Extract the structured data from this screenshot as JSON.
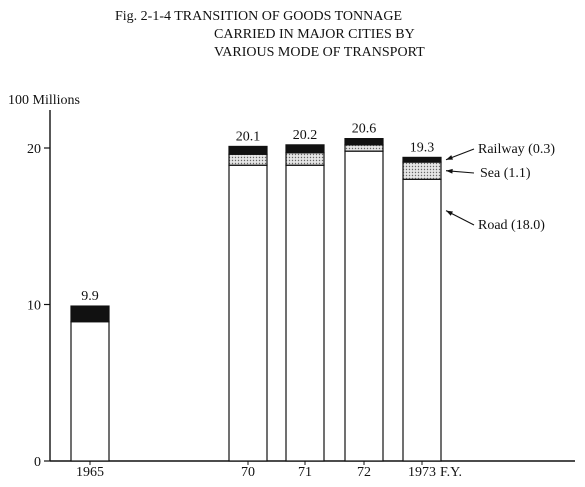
{
  "chart_data": {
    "type": "bar",
    "stacked": true,
    "title_lines": [
      "Fig. 2-1-4   TRANSITION OF GOODS TONNAGE",
      "CARRIED IN MAJOR CITIES BY",
      "VARIOUS MODE OF TRANSPORT"
    ],
    "y_unit": "100 Millions",
    "x_axis_suffix": "F.Y.",
    "ylim": [
      0,
      20
    ],
    "y_ticks": [
      0,
      10,
      20
    ],
    "grid": false,
    "categories": [
      "1965",
      "70",
      "71",
      "72",
      "1973"
    ],
    "totals": [
      "9.9",
      "20.1",
      "20.2",
      "20.6",
      "19.3"
    ],
    "series": [
      {
        "name": "Road",
        "values": [
          8.9,
          18.9,
          18.9,
          19.8,
          18.0
        ]
      },
      {
        "name": "Sea",
        "values": [
          0.0,
          0.7,
          0.8,
          0.4,
          1.1
        ]
      },
      {
        "name": "Railway",
        "values": [
          1.0,
          0.5,
          0.5,
          0.4,
          0.3
        ]
      }
    ],
    "annotations": [
      {
        "text": "Railway (0.3)",
        "series": "Railway",
        "category": "1973"
      },
      {
        "text": "Sea (1.1)",
        "series": "Sea",
        "category": "1973"
      },
      {
        "text": "Road (18.0)",
        "series": "Road",
        "category": "1973"
      }
    ],
    "colors": {
      "Road": "#ffffff",
      "Sea": "#d6d6d6",
      "Railway": "#111111"
    }
  }
}
